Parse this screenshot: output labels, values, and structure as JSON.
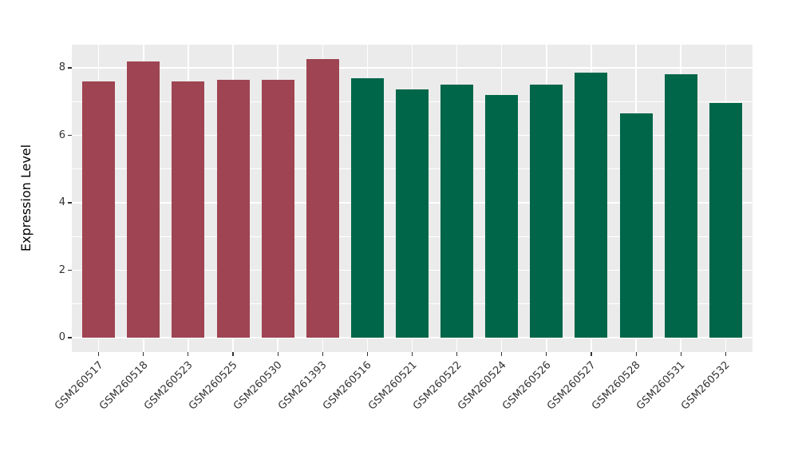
{
  "chart_data": {
    "type": "bar",
    "title": "",
    "xlabel": "",
    "ylabel": "Expression Level",
    "categories": [
      "GSM260517",
      "GSM260518",
      "GSM260523",
      "GSM260525",
      "GSM260530",
      "GSM261393",
      "GSM260516",
      "GSM260521",
      "GSM260522",
      "GSM260524",
      "GSM260526",
      "GSM260527",
      "GSM260528",
      "GSM260531",
      "GSM260532"
    ],
    "values": [
      7.6,
      8.2,
      7.6,
      7.65,
      7.65,
      8.25,
      7.7,
      7.35,
      7.5,
      7.2,
      7.5,
      7.85,
      6.65,
      7.8,
      6.95
    ],
    "bar_colors": [
      "#9e4452",
      "#9e4452",
      "#9e4452",
      "#9e4452",
      "#9e4452",
      "#9e4452",
      "#006649",
      "#006649",
      "#006649",
      "#006649",
      "#006649",
      "#006649",
      "#006649",
      "#006649",
      "#006649"
    ],
    "group_colors": {
      "group_1": "#9e4452",
      "group_2": "#006649"
    },
    "ylim": [
      0,
      8.69
    ],
    "yticks": [
      0,
      2,
      4,
      6,
      8
    ],
    "yticks_minor": [
      1,
      3,
      5,
      7
    ],
    "x_tick_label_rotation": 45,
    "legend": "none",
    "grid": true,
    "panel_background": "#ebebeb",
    "grid_color": "#ffffff",
    "tick_color": "#333333",
    "axis_text_color": "#333333",
    "axis_title_color": "#000000"
  }
}
